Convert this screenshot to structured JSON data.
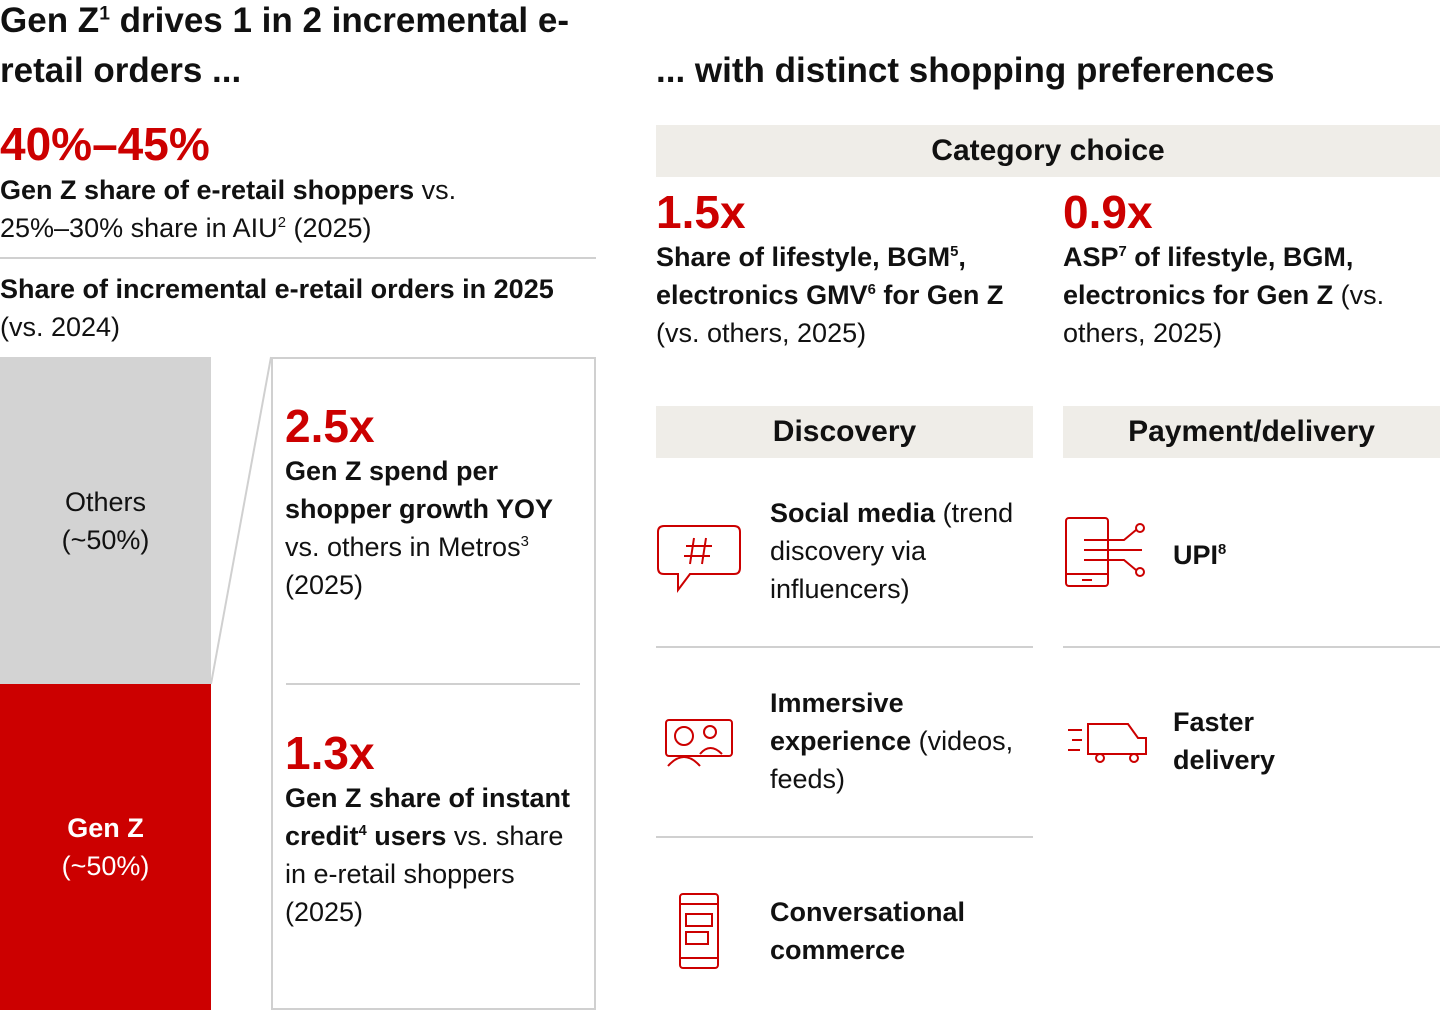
{
  "left": {
    "title": [
      {
        "t": "Gen Z"
      },
      {
        "t": "1",
        "sup": true
      },
      {
        "t": " drives 1 in 2 incremental e-retail orders ..."
      }
    ],
    "stat": {
      "value": "40%–45%",
      "text": [
        {
          "t": "Gen Z share of e-retail shoppers",
          "b": true
        },
        {
          "t": " vs. 25%–30% share in AIU"
        },
        {
          "t": "2",
          "sup": true
        },
        {
          "t": " (2025)"
        }
      ]
    },
    "chart_heading": [
      {
        "t": "Share of incremental e-retail orders in 2025",
        "b": true
      },
      {
        "t": " (vs. 2024)"
      }
    ],
    "bar": {
      "segments": [
        {
          "label": "Others",
          "share": "(~50%)"
        },
        {
          "label": "Gen Z",
          "share": "(~50%)"
        }
      ]
    },
    "callouts": [
      {
        "value": "2.5x",
        "text": [
          {
            "t": "Gen Z spend per shopper growth YOY",
            "b": true
          },
          {
            "t": " vs. others in Metros"
          },
          {
            "t": "3",
            "sup": true
          },
          {
            "t": " (2025)"
          }
        ]
      },
      {
        "value": "1.3x",
        "text": [
          {
            "t": "Gen Z share of instant credit",
            "b": true
          },
          {
            "t": "4",
            "sup": true,
            "b": true
          },
          {
            "t": " users",
            "b": true
          },
          {
            "t": " vs. share in e-retail shoppers (2025)"
          }
        ]
      }
    ]
  },
  "right": {
    "title": "... with distinct shopping preferences",
    "category": {
      "heading": "Category choice",
      "stats": [
        {
          "value": "1.5x",
          "text": [
            {
              "t": "Share of lifestyle, BGM",
              "b": true
            },
            {
              "t": "5",
              "sup": true,
              "b": true
            },
            {
              "t": ", electronics GMV",
              "b": true
            },
            {
              "t": "6",
              "sup": true,
              "b": true
            },
            {
              "t": " for Gen Z",
              "b": true
            },
            {
              "t": " (vs. others, 2025)"
            }
          ]
        },
        {
          "value": "0.9x",
          "text": [
            {
              "t": "ASP",
              "b": true
            },
            {
              "t": "7",
              "sup": true,
              "b": true
            },
            {
              "t": " of lifestyle, BGM, electronics for Gen Z",
              "b": true
            },
            {
              "t": " (vs. others, 2025)"
            }
          ]
        }
      ]
    },
    "discovery": {
      "heading": "Discovery",
      "items": [
        [
          {
            "t": "Social media",
            "b": true
          },
          {
            "t": " (trend discovery via influencers)"
          }
        ],
        [
          {
            "t": "Immersive experience",
            "b": true
          },
          {
            "t": " (videos, feeds)"
          }
        ],
        [
          {
            "t": "Conversational commerce",
            "b": true
          }
        ]
      ]
    },
    "payment": {
      "heading": "Payment/delivery",
      "items": [
        [
          {
            "t": "UPI",
            "b": true
          },
          {
            "t": "8",
            "sup": true,
            "b": true
          }
        ],
        [
          {
            "t": "Faster delivery",
            "b": true
          }
        ]
      ]
    }
  }
}
